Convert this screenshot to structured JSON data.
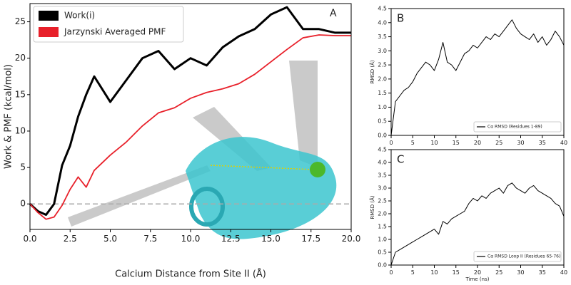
{
  "chart_data": [
    {
      "type": "line",
      "panel_label": "A",
      "xlabel": "Calcium Distance from Site II (Å)",
      "ylabel": "Work & PMF (kcal/mol)",
      "xlim": [
        0,
        20
      ],
      "ylim": [
        -3.5,
        27.5
      ],
      "xticks": [
        {
          "value": 0,
          "label": "0.0"
        },
        {
          "value": 2.5,
          "label": "2.5"
        },
        {
          "value": 5,
          "label": "5.0"
        },
        {
          "value": 7.5,
          "label": "7.5"
        },
        {
          "value": 10,
          "label": "10.0"
        },
        {
          "value": 12.5,
          "label": "12.5"
        },
        {
          "value": 15,
          "label": "15.0"
        },
        {
          "value": 17.5,
          "label": "17.5"
        },
        {
          "value": 20,
          "label": "20.0"
        }
      ],
      "yticks": [
        0,
        5,
        10,
        15,
        20,
        25
      ],
      "reference_line": 0,
      "legend": "upper left",
      "x": [
        0,
        0.5,
        1,
        1.5,
        2,
        2.5,
        3,
        3.5,
        4,
        5,
        6,
        7,
        8,
        9,
        10,
        11,
        12,
        13,
        14,
        15,
        16,
        17,
        18,
        19,
        20
      ],
      "series": [
        {
          "name": "Work(i)",
          "color": "#000000",
          "values": [
            0,
            -1.0,
            -1.5,
            0,
            5.3,
            8,
            12,
            15,
            17.5,
            14,
            17,
            20,
            21,
            18.5,
            20,
            19,
            21.5,
            23,
            24,
            26,
            27,
            24,
            24,
            23.5,
            23.5
          ]
        },
        {
          "name": "Jarzynski Averaged PMF",
          "color": "#e8202a",
          "values": [
            0,
            -1.2,
            -2.1,
            -1.8,
            -0.2,
            2.0,
            3.7,
            2.3,
            4.6,
            6.7,
            8.5,
            10.7,
            12.5,
            13.2,
            14.5,
            15.3,
            15.8,
            16.5,
            17.8,
            19.5,
            21.2,
            22.8,
            23.2,
            23.1,
            23.1
          ]
        }
      ]
    },
    {
      "type": "line",
      "panel_label": "B",
      "ylabel": "RMSD (Å)",
      "xlim": [
        0,
        40
      ],
      "ylim": [
        0,
        4.5
      ],
      "xticks": [
        0,
        5,
        10,
        15,
        20,
        25,
        30,
        35,
        40
      ],
      "yticks": [
        {
          "value": 0,
          "label": "0.0"
        },
        {
          "value": 0.5,
          "label": "0.5"
        },
        {
          "value": 1,
          "label": "1.0"
        },
        {
          "value": 1.5,
          "label": "1.5"
        },
        {
          "value": 2,
          "label": "2.0"
        },
        {
          "value": 2.5,
          "label": "2.5"
        },
        {
          "value": 3,
          "label": "3.0"
        },
        {
          "value": 3.5,
          "label": "3.5"
        },
        {
          "value": 4,
          "label": "4.0"
        },
        {
          "value": 4.5,
          "label": "4.5"
        }
      ],
      "legend": "lower right",
      "x": [
        0,
        1,
        2,
        3,
        4,
        5,
        6,
        7,
        8,
        9,
        10,
        11,
        12,
        13,
        14,
        15,
        16,
        17,
        18,
        19,
        20,
        21,
        22,
        23,
        24,
        25,
        26,
        27,
        28,
        29,
        30,
        31,
        32,
        33,
        34,
        35,
        36,
        37,
        38,
        39,
        40
      ],
      "series": [
        {
          "name": "Cα RMSD (Residues 1-89)",
          "color": "#000000",
          "values": [
            0,
            1.2,
            1.4,
            1.6,
            1.7,
            1.9,
            2.2,
            2.4,
            2.6,
            2.5,
            2.3,
            2.7,
            3.3,
            2.6,
            2.5,
            2.3,
            2.6,
            2.9,
            3.0,
            3.2,
            3.1,
            3.3,
            3.5,
            3.4,
            3.6,
            3.5,
            3.7,
            3.9,
            4.1,
            3.8,
            3.6,
            3.5,
            3.4,
            3.6,
            3.3,
            3.5,
            3.2,
            3.4,
            3.7,
            3.5,
            3.2
          ]
        }
      ]
    },
    {
      "type": "line",
      "panel_label": "C",
      "ylabel": "RMSD (Å)",
      "xlabel": "Time (ns)",
      "xlim": [
        0,
        40
      ],
      "ylim": [
        0,
        4.5
      ],
      "xticks": [
        0,
        5,
        10,
        15,
        20,
        25,
        30,
        35,
        40
      ],
      "yticks": [
        {
          "value": 0,
          "label": "0.0"
        },
        {
          "value": 0.5,
          "label": "0.5"
        },
        {
          "value": 1,
          "label": "1.0"
        },
        {
          "value": 1.5,
          "label": "1.5"
        },
        {
          "value": 2,
          "label": "2.0"
        },
        {
          "value": 2.5,
          "label": "2.5"
        },
        {
          "value": 3,
          "label": "3.0"
        },
        {
          "value": 3.5,
          "label": "3.5"
        },
        {
          "value": 4,
          "label": "4.0"
        },
        {
          "value": 4.5,
          "label": "4.5"
        }
      ],
      "legend": "lower right",
      "x": [
        0,
        1,
        2,
        3,
        4,
        5,
        6,
        7,
        8,
        9,
        10,
        11,
        12,
        13,
        14,
        15,
        16,
        17,
        18,
        19,
        20,
        21,
        22,
        23,
        24,
        25,
        26,
        27,
        28,
        29,
        30,
        31,
        32,
        33,
        34,
        35,
        36,
        37,
        38,
        39,
        40
      ],
      "series": [
        {
          "name": "Cα RMSD Loop II (Residues 65-76)",
          "color": "#000000",
          "values": [
            0,
            0.5,
            0.6,
            0.7,
            0.8,
            0.9,
            1.0,
            1.1,
            1.2,
            1.3,
            1.4,
            1.2,
            1.7,
            1.6,
            1.8,
            1.9,
            2.0,
            2.1,
            2.4,
            2.6,
            2.5,
            2.7,
            2.6,
            2.8,
            2.9,
            3.0,
            2.8,
            3.1,
            3.2,
            3.0,
            2.9,
            2.8,
            3.0,
            3.1,
            2.9,
            2.8,
            2.7,
            2.6,
            2.4,
            2.3,
            1.9
          ]
        }
      ]
    }
  ]
}
